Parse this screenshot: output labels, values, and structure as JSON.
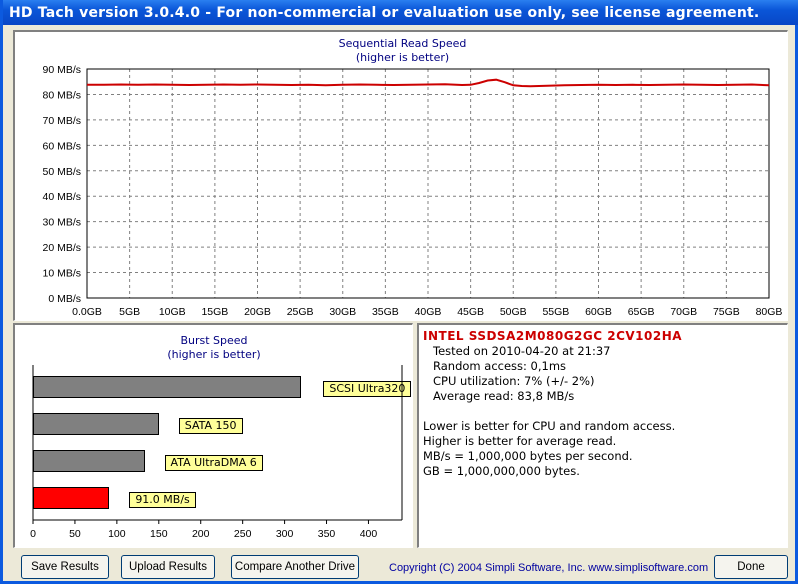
{
  "window": {
    "title": "HD Tach version 3.0.4.0  - For non-commercial or evaluation use only, see license agreement."
  },
  "colors": {
    "read_line": "#cc0000",
    "grid": "#808080",
    "bar_gray": "#808080",
    "bar_red": "#ff0000",
    "label_bg": "#ffff99",
    "title_blue": "#000080"
  },
  "sequential": {
    "title": "Sequential Read Speed",
    "subtitle": "(higher is better)"
  },
  "chart_data": [
    {
      "type": "line",
      "title": "Sequential Read Speed",
      "subtitle": "(higher is better)",
      "y_ticks": [
        "90 MB/s",
        "80 MB/s",
        "70 MB/s",
        "60 MB/s",
        "50 MB/s",
        "40 MB/s",
        "30 MB/s",
        "20 MB/s",
        "10 MB/s",
        "0 MB/s"
      ],
      "x_ticks": [
        "0.0GB",
        "5GB",
        "10GB",
        "15GB",
        "20GB",
        "25GB",
        "30GB",
        "35GB",
        "40GB",
        "45GB",
        "50GB",
        "55GB",
        "60GB",
        "65GB",
        "70GB",
        "75GB",
        "80GB"
      ],
      "xlim": [
        0,
        80
      ],
      "ylim": [
        0,
        90
      ],
      "grid": true,
      "series": [
        {
          "x": [
            0,
            2,
            4,
            6,
            8,
            10,
            12,
            14,
            16,
            18,
            20,
            22,
            24,
            26,
            28,
            30,
            32,
            34,
            36,
            38,
            40,
            42,
            44,
            45,
            46,
            47,
            48,
            49,
            50,
            51,
            52,
            54,
            56,
            58,
            60,
            62,
            64,
            66,
            68,
            70,
            72,
            74,
            76,
            78,
            80
          ],
          "y": [
            83.8,
            83.8,
            83.9,
            83.8,
            83.9,
            83.8,
            83.7,
            83.8,
            83.9,
            83.8,
            83.9,
            83.8,
            83.7,
            83.8,
            83.6,
            83.8,
            83.9,
            83.8,
            83.7,
            83.8,
            83.9,
            84.0,
            83.7,
            83.8,
            84.5,
            85.5,
            85.8,
            84.8,
            83.6,
            83.3,
            83.2,
            83.4,
            83.6,
            83.7,
            83.8,
            83.7,
            83.8,
            83.7,
            83.8,
            83.9,
            83.8,
            83.7,
            83.8,
            83.9,
            83.6
          ]
        }
      ]
    },
    {
      "type": "bar",
      "title": "Burst Speed",
      "subtitle": "(higher is better)",
      "x_ticks": [
        "0",
        "50",
        "100",
        "150",
        "200",
        "250",
        "300",
        "350",
        "400"
      ],
      "xlim": [
        0,
        440
      ],
      "categories": [
        "SCSI Ultra320",
        "SATA 150",
        "ATA UltraDMA 6",
        "91.0 MB/s"
      ],
      "values": [
        320,
        150,
        133,
        91.0
      ]
    }
  ],
  "info": {
    "drive": "INTEL SSDSA2M080G2GC 2CV102HA",
    "lines": [
      "Tested on 2010-04-20 at 21:37",
      "Random access: 0,1ms",
      "CPU utilization: 7% (+/- 2%)",
      "Average read: 83,8 MB/s"
    ],
    "notes": [
      "Lower is better for CPU and random access.",
      "Higher is better for average read.",
      "MB/s = 1,000,000 bytes per second.",
      "GB = 1,000,000,000 bytes."
    ]
  },
  "buttons": {
    "save": "Save Results",
    "upload": "Upload Results",
    "compare": "Compare Another Drive",
    "done": "Done"
  },
  "copyright": "Copyright (C) 2004 Simpli Software, Inc. www.simplisoftware.com"
}
